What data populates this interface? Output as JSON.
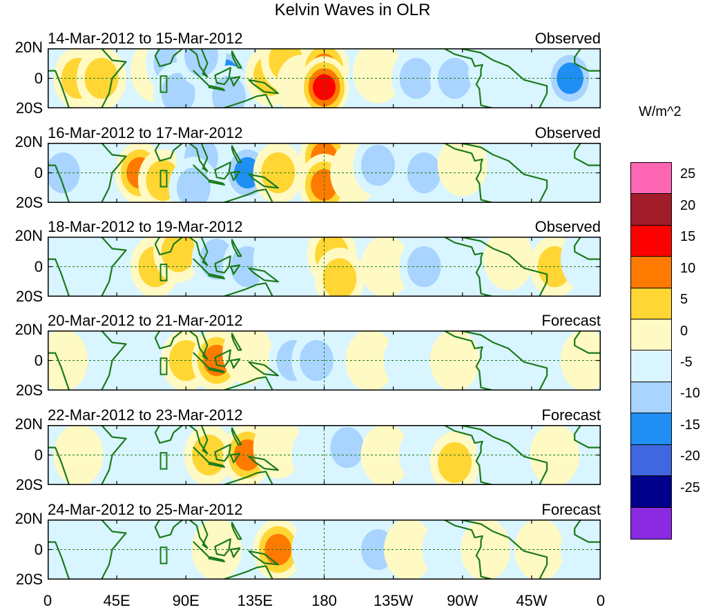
{
  "title": "Kelvin Waves in OLR",
  "units": "W/m^2",
  "lat_labels": [
    "20N",
    "0",
    "20S"
  ],
  "lon_labels": [
    "0",
    "45E",
    "90E",
    "135E",
    "180",
    "135W",
    "90W",
    "45W",
    "0"
  ],
  "colorbar": {
    "colors": [
      "#ff66b3",
      "#a21c2a",
      "#ff0000",
      "#ff7a00",
      "#ffd633",
      "#fff9c4",
      "#d9f5ff",
      "#a8d4ff",
      "#1f8ff5",
      "#4066e0",
      "#00008b",
      "#8a2be2"
    ],
    "labels": [
      "25",
      "20",
      "15",
      "10",
      "5",
      "0",
      "-5",
      "-10",
      "-15",
      "-20",
      "-25"
    ]
  },
  "panels": [
    {
      "dates": "14-Mar-2012 to 15-Mar-2012",
      "type": "Observed"
    },
    {
      "dates": "16-Mar-2012 to 17-Mar-2012",
      "type": "Observed"
    },
    {
      "dates": "18-Mar-2012 to 19-Mar-2012",
      "type": "Observed"
    },
    {
      "dates": "20-Mar-2012 to 21-Mar-2012",
      "type": "Forecast"
    },
    {
      "dates": "22-Mar-2012 to 23-Mar-2012",
      "type": "Forecast"
    },
    {
      "dates": "24-Mar-2012 to 25-Mar-2012",
      "type": "Forecast"
    }
  ],
  "anomalies": [
    [
      {
        "lon": 20,
        "lat": 0,
        "v": 8
      },
      {
        "lon": 35,
        "lat": 0,
        "v": 12
      },
      {
        "lon": 70,
        "lat": 5,
        "v": 3
      },
      {
        "lon": 80,
        "lat": 10,
        "v": -12
      },
      {
        "lon": 85,
        "lat": -10,
        "v": -10
      },
      {
        "lon": 115,
        "lat": 0,
        "v": -22
      },
      {
        "lon": 100,
        "lat": 15,
        "v": -8
      },
      {
        "lon": 118,
        "lat": -12,
        "v": -10
      },
      {
        "lon": 145,
        "lat": 2,
        "v": 10
      },
      {
        "lon": 155,
        "lat": 12,
        "v": 8
      },
      {
        "lon": 165,
        "lat": -5,
        "v": 7
      },
      {
        "lon": 180,
        "lat": 6,
        "v": 16
      },
      {
        "lon": 180,
        "lat": -6,
        "v": 18
      },
      {
        "lon": 215,
        "lat": 4,
        "v": 7
      },
      {
        "lon": 240,
        "lat": 0,
        "v": -9
      },
      {
        "lon": 265,
        "lat": 0,
        "v": -11
      },
      {
        "lon": 290,
        "lat": 5,
        "v": -4
      },
      {
        "lon": 340,
        "lat": 0,
        "v": -14
      }
    ],
    [
      {
        "lon": 10,
        "lat": 0,
        "v": -8
      },
      {
        "lon": 40,
        "lat": 5,
        "v": -6
      },
      {
        "lon": 60,
        "lat": 0,
        "v": 14
      },
      {
        "lon": 75,
        "lat": -5,
        "v": 12
      },
      {
        "lon": 100,
        "lat": 10,
        "v": -10
      },
      {
        "lon": 95,
        "lat": -10,
        "v": -8
      },
      {
        "lon": 130,
        "lat": 0,
        "v": -14
      },
      {
        "lon": 150,
        "lat": 0,
        "v": 11
      },
      {
        "lon": 180,
        "lat": 10,
        "v": 14
      },
      {
        "lon": 180,
        "lat": -8,
        "v": 14
      },
      {
        "lon": 200,
        "lat": 0,
        "v": 6
      },
      {
        "lon": 215,
        "lat": 5,
        "v": -10
      },
      {
        "lon": 245,
        "lat": 0,
        "v": -12
      },
      {
        "lon": 270,
        "lat": 5,
        "v": 6
      },
      {
        "lon": 310,
        "lat": 0,
        "v": -6
      },
      {
        "lon": 345,
        "lat": -5,
        "v": -5
      }
    ],
    [
      {
        "lon": 15,
        "lat": 0,
        "v": -5
      },
      {
        "lon": 40,
        "lat": 0,
        "v": -4
      },
      {
        "lon": 70,
        "lat": 0,
        "v": 10
      },
      {
        "lon": 85,
        "lat": 10,
        "v": 8
      },
      {
        "lon": 110,
        "lat": 5,
        "v": -10
      },
      {
        "lon": 130,
        "lat": 0,
        "v": -12
      },
      {
        "lon": 150,
        "lat": 5,
        "v": -6
      },
      {
        "lon": 185,
        "lat": 8,
        "v": 10
      },
      {
        "lon": 190,
        "lat": -8,
        "v": 11
      },
      {
        "lon": 220,
        "lat": 0,
        "v": 5
      },
      {
        "lon": 245,
        "lat": 0,
        "v": -8
      },
      {
        "lon": 275,
        "lat": -5,
        "v": -6
      },
      {
        "lon": 300,
        "lat": 5,
        "v": 5
      },
      {
        "lon": 330,
        "lat": 0,
        "v": 10
      },
      {
        "lon": 350,
        "lat": 5,
        "v": -5
      }
    ],
    [
      {
        "lon": 10,
        "lat": 0,
        "v": 4
      },
      {
        "lon": 45,
        "lat": 0,
        "v": -4
      },
      {
        "lon": 90,
        "lat": 0,
        "v": 8
      },
      {
        "lon": 110,
        "lat": 0,
        "v": 13
      },
      {
        "lon": 130,
        "lat": 5,
        "v": 5
      },
      {
        "lon": 160,
        "lat": 0,
        "v": -11
      },
      {
        "lon": 175,
        "lat": 0,
        "v": -8
      },
      {
        "lon": 210,
        "lat": 0,
        "v": 7
      },
      {
        "lon": 235,
        "lat": 0,
        "v": -5
      },
      {
        "lon": 265,
        "lat": 0,
        "v": 4
      },
      {
        "lon": 300,
        "lat": 0,
        "v": -4
      },
      {
        "lon": 350,
        "lat": 0,
        "v": 5
      }
    ],
    [
      {
        "lon": 20,
        "lat": 0,
        "v": 3
      },
      {
        "lon": 55,
        "lat": 0,
        "v": -5
      },
      {
        "lon": 105,
        "lat": 0,
        "v": 9
      },
      {
        "lon": 130,
        "lat": 0,
        "v": 14
      },
      {
        "lon": 150,
        "lat": 5,
        "v": 5
      },
      {
        "lon": 175,
        "lat": 0,
        "v": -7
      },
      {
        "lon": 195,
        "lat": 5,
        "v": -12
      },
      {
        "lon": 220,
        "lat": 0,
        "v": 6
      },
      {
        "lon": 245,
        "lat": 0,
        "v": -6
      },
      {
        "lon": 265,
        "lat": -5,
        "v": 10
      },
      {
        "lon": 295,
        "lat": 0,
        "v": -5
      },
      {
        "lon": 330,
        "lat": 0,
        "v": 5
      }
    ],
    [
      {
        "lon": 20,
        "lat": 0,
        "v": -3
      },
      {
        "lon": 50,
        "lat": 0,
        "v": -5
      },
      {
        "lon": 110,
        "lat": 0,
        "v": 7
      },
      {
        "lon": 150,
        "lat": 0,
        "v": 13
      },
      {
        "lon": 175,
        "lat": 0,
        "v": -5
      },
      {
        "lon": 215,
        "lat": 0,
        "v": -12
      },
      {
        "lon": 235,
        "lat": 0,
        "v": 5
      },
      {
        "lon": 260,
        "lat": 0,
        "v": -5
      },
      {
        "lon": 285,
        "lat": 0,
        "v": 4
      },
      {
        "lon": 320,
        "lat": 0,
        "v": 6
      },
      {
        "lon": 350,
        "lat": 0,
        "v": -4
      }
    ]
  ]
}
